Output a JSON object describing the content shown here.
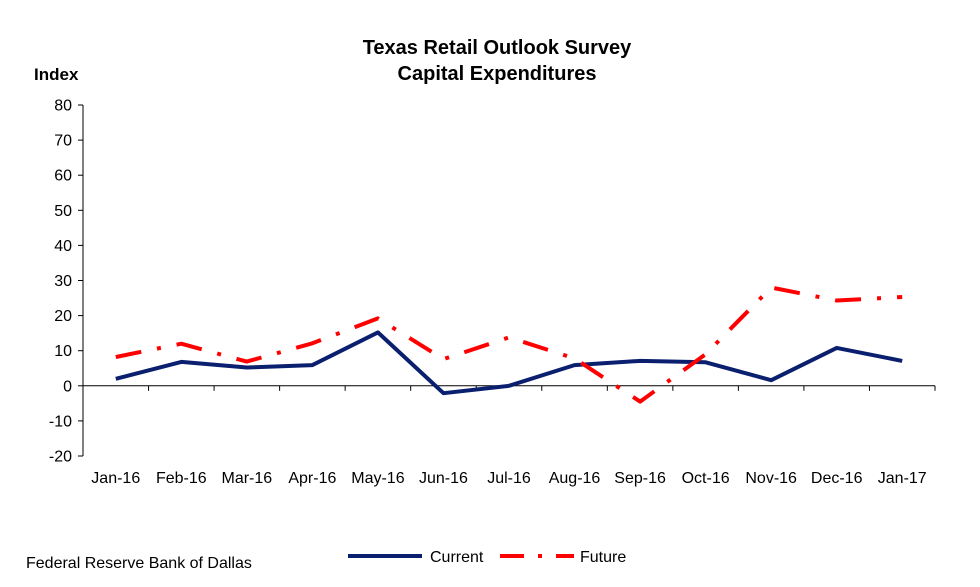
{
  "chart_data": {
    "type": "line",
    "title_lines": [
      "Texas Retail Outlook Survey",
      "Capital Expenditures"
    ],
    "ylabel": "Index",
    "xlabel": "",
    "ylim": [
      -20,
      80
    ],
    "y_ticks": [
      80,
      70,
      60,
      50,
      40,
      30,
      20,
      10,
      0,
      -10,
      -20
    ],
    "categories": [
      "Jan-16",
      "Feb-16",
      "Mar-16",
      "Apr-16",
      "May-16",
      "Jun-16",
      "Jul-16",
      "Aug-16",
      "Sep-16",
      "Oct-16",
      "Nov-16",
      "Dec-16",
      "Jan-17"
    ],
    "series": [
      {
        "name": "Current",
        "color": "#0a1f6e",
        "style": "solid",
        "values": [
          2.0,
          6.8,
          5.2,
          5.9,
          15.2,
          -2.1,
          0.0,
          5.9,
          7.1,
          6.7,
          1.6,
          10.8,
          7.1
        ]
      },
      {
        "name": "Future",
        "color": "#ff0000",
        "style": "dash-dot",
        "values": [
          8.2,
          12.0,
          6.9,
          12.1,
          19.2,
          7.6,
          13.8,
          7.8,
          -4.5,
          9.0,
          28.0,
          24.3,
          25.3
        ]
      }
    ],
    "grid": false,
    "legend_position": "bottom"
  },
  "source": "Federal Reserve Bank of Dallas"
}
